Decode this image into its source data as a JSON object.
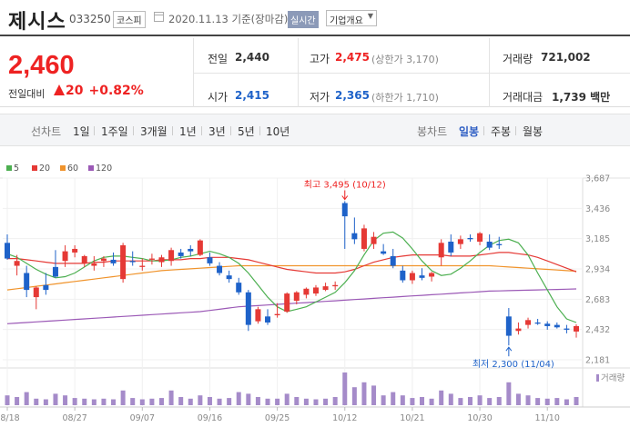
{
  "header": {
    "name": "제시스",
    "code": "033250",
    "market": "코스피",
    "date": "2020.11.13 기준(장마감)",
    "realtime": "실시간",
    "company_info": "기업개요"
  },
  "summary": {
    "price": "2,460",
    "change_label": "전일대비",
    "change": "20",
    "change_pct": "+0.82%",
    "prev_close_label": "전일",
    "prev_close": "2,440",
    "high_label": "고가",
    "high": "2,475",
    "upper_limit": "(상한가 3,170)",
    "volume_label": "거래량",
    "volume": "721,002",
    "open_label": "시가",
    "open": "2,415",
    "low_label": "저가",
    "low": "2,365",
    "lower_limit": "(하한가 1,710)",
    "amount_label": "거래대금",
    "amount": "1,739 백만"
  },
  "toolbar": {
    "line_label": "선차트",
    "periods": [
      "1일",
      "1주일",
      "3개월",
      "1년",
      "3년",
      "5년",
      "10년"
    ],
    "candle_label": "봉차트",
    "candle_types": [
      "일봉",
      "주봉",
      "월봉"
    ]
  },
  "legend": [
    {
      "label": "5",
      "color": "#4caf50"
    },
    {
      "label": "20",
      "color": "#e53935"
    },
    {
      "label": "60",
      "color": "#f0932b"
    },
    {
      "label": "120",
      "color": "#9b59b6"
    }
  ],
  "colors": {
    "up": "#e53935",
    "down": "#1e62c9",
    "volume": "#a58bc9"
  },
  "chart_data": {
    "type": "candlestick",
    "y_ticks": [
      2181,
      2432,
      2683,
      2934,
      3185,
      3436,
      3687
    ],
    "x_tick_labels": [
      "08/18",
      "08/27",
      "09/07",
      "09/16",
      "09/25",
      "10/12",
      "10/21",
      "10/30",
      "11/10"
    ],
    "x_tick_index": [
      0,
      7,
      14,
      21,
      28,
      35,
      42,
      49,
      56
    ],
    "max_annotation": "최고 3,495 (10/12)",
    "min_annotation": "최저 2,300 (11/04)",
    "volume_label": "거래량",
    "candles": [
      {
        "o": 3150,
        "h": 3220,
        "l": 3010,
        "c": 3020
      },
      {
        "o": 2960,
        "h": 3050,
        "l": 2880,
        "c": 3000
      },
      {
        "o": 2900,
        "h": 2960,
        "l": 2700,
        "c": 2760
      },
      {
        "o": 2700,
        "h": 2790,
        "l": 2600,
        "c": 2780
      },
      {
        "o": 2800,
        "h": 2900,
        "l": 2720,
        "c": 2760
      },
      {
        "o": 2950,
        "h": 3090,
        "l": 2860,
        "c": 2870
      },
      {
        "o": 3000,
        "h": 3130,
        "l": 2950,
        "c": 3080
      },
      {
        "o": 3070,
        "h": 3130,
        "l": 3030,
        "c": 3100
      },
      {
        "o": 2980,
        "h": 3050,
        "l": 2950,
        "c": 3040
      },
      {
        "o": 2960,
        "h": 3040,
        "l": 2920,
        "c": 2980
      },
      {
        "o": 3000,
        "h": 3040,
        "l": 2950,
        "c": 3020
      },
      {
        "o": 3010,
        "h": 3070,
        "l": 2960,
        "c": 2980
      },
      {
        "o": 2850,
        "h": 3150,
        "l": 2820,
        "c": 3130
      },
      {
        "o": 3000,
        "h": 3080,
        "l": 2960,
        "c": 2990
      },
      {
        "o": 2950,
        "h": 3020,
        "l": 2920,
        "c": 2960
      },
      {
        "o": 3010,
        "h": 3060,
        "l": 2970,
        "c": 3020
      },
      {
        "o": 2990,
        "h": 3050,
        "l": 2950,
        "c": 3030
      },
      {
        "o": 3000,
        "h": 3110,
        "l": 2960,
        "c": 3090
      },
      {
        "o": 3070,
        "h": 3100,
        "l": 3020,
        "c": 3040
      },
      {
        "o": 3100,
        "h": 3130,
        "l": 3040,
        "c": 3080
      },
      {
        "o": 3050,
        "h": 3180,
        "l": 3040,
        "c": 3170
      },
      {
        "o": 3030,
        "h": 3070,
        "l": 2960,
        "c": 2980
      },
      {
        "o": 2960,
        "h": 2990,
        "l": 2880,
        "c": 2900
      },
      {
        "o": 2880,
        "h": 2920,
        "l": 2820,
        "c": 2850
      },
      {
        "o": 2820,
        "h": 2860,
        "l": 2720,
        "c": 2740
      },
      {
        "o": 2740,
        "h": 2760,
        "l": 2420,
        "c": 2470
      },
      {
        "o": 2500,
        "h": 2620,
        "l": 2480,
        "c": 2600
      },
      {
        "o": 2540,
        "h": 2600,
        "l": 2470,
        "c": 2490
      },
      {
        "o": 2550,
        "h": 2650,
        "l": 2530,
        "c": 2560
      },
      {
        "o": 2580,
        "h": 2740,
        "l": 2570,
        "c": 2730
      },
      {
        "o": 2670,
        "h": 2750,
        "l": 2640,
        "c": 2740
      },
      {
        "o": 2720,
        "h": 2780,
        "l": 2690,
        "c": 2770
      },
      {
        "o": 2730,
        "h": 2800,
        "l": 2710,
        "c": 2780
      },
      {
        "o": 2760,
        "h": 2820,
        "l": 2750,
        "c": 2790
      },
      {
        "o": 2790,
        "h": 2830,
        "l": 2760,
        "c": 2800
      },
      {
        "o": 3480,
        "h": 3495,
        "l": 3100,
        "c": 3370
      },
      {
        "o": 3230,
        "h": 3360,
        "l": 3140,
        "c": 3180
      },
      {
        "o": 3100,
        "h": 3300,
        "l": 3080,
        "c": 3270
      },
      {
        "o": 3140,
        "h": 3240,
        "l": 3100,
        "c": 3200
      },
      {
        "o": 3080,
        "h": 3140,
        "l": 3050,
        "c": 3060
      },
      {
        "o": 3040,
        "h": 3100,
        "l": 2940,
        "c": 2960
      },
      {
        "o": 2920,
        "h": 2960,
        "l": 2820,
        "c": 2840
      },
      {
        "o": 2840,
        "h": 2920,
        "l": 2810,
        "c": 2900
      },
      {
        "o": 2880,
        "h": 2940,
        "l": 2840,
        "c": 2860
      },
      {
        "o": 2870,
        "h": 2910,
        "l": 2830,
        "c": 2900
      },
      {
        "o": 3030,
        "h": 3180,
        "l": 2960,
        "c": 3150
      },
      {
        "o": 3160,
        "h": 3220,
        "l": 3040,
        "c": 3070
      },
      {
        "o": 3140,
        "h": 3210,
        "l": 3100,
        "c": 3180
      },
      {
        "o": 3190,
        "h": 3220,
        "l": 3160,
        "c": 3180
      },
      {
        "o": 3160,
        "h": 3240,
        "l": 3130,
        "c": 3230
      },
      {
        "o": 3160,
        "h": 3220,
        "l": 3090,
        "c": 3110
      },
      {
        "o": 3140,
        "h": 3200,
        "l": 3100,
        "c": 3130
      },
      {
        "o": 2540,
        "h": 2610,
        "l": 2300,
        "c": 2380
      },
      {
        "o": 2420,
        "h": 2490,
        "l": 2390,
        "c": 2440
      },
      {
        "o": 2470,
        "h": 2530,
        "l": 2440,
        "c": 2510
      },
      {
        "o": 2490,
        "h": 2520,
        "l": 2470,
        "c": 2480
      },
      {
        "o": 2480,
        "h": 2500,
        "l": 2430,
        "c": 2460
      },
      {
        "o": 2470,
        "h": 2490,
        "l": 2440,
        "c": 2450
      },
      {
        "o": 2440,
        "h": 2470,
        "l": 2400,
        "c": 2430
      },
      {
        "o": 2415,
        "h": 2475,
        "l": 2365,
        "c": 2460
      }
    ],
    "volume": [
      30,
      25,
      40,
      20,
      18,
      35,
      30,
      22,
      20,
      18,
      20,
      18,
      45,
      22,
      18,
      20,
      22,
      45,
      25,
      20,
      30,
      25,
      20,
      22,
      40,
      35,
      25,
      20,
      20,
      35,
      25,
      20,
      18,
      20,
      25,
      100,
      55,
      70,
      60,
      30,
      40,
      30,
      22,
      25,
      20,
      45,
      35,
      22,
      25,
      30,
      22,
      25,
      70,
      35,
      30,
      22,
      20,
      22,
      18,
      25
    ],
    "ma5": [
      3060,
      3030,
      2980,
      2930,
      2890,
      2860,
      2870,
      2900,
      2950,
      3000,
      3030,
      3040,
      3040,
      3030,
      3020,
      3000,
      3000,
      3010,
      3030,
      3040,
      3060,
      3080,
      3060,
      3030,
      2980,
      2900,
      2800,
      2700,
      2620,
      2580,
      2600,
      2620,
      2660,
      2700,
      2740,
      2820,
      2920,
      3050,
      3170,
      3230,
      3240,
      3190,
      3100,
      3000,
      2920,
      2880,
      2890,
      2940,
      3000,
      3070,
      3130,
      3170,
      3180,
      3150,
      3050,
      2900,
      2760,
      2620,
      2520,
      2490
    ],
    "ma20": [
      3020,
      3020,
      3010,
      3000,
      2990,
      2980,
      2980,
      2980,
      2980,
      2990,
      2990,
      3000,
      3000,
      3000,
      3000,
      3000,
      3010,
      3010,
      3010,
      3020,
      3020,
      3030,
      3030,
      3030,
      3020,
      3010,
      2990,
      2970,
      2950,
      2930,
      2920,
      2910,
      2900,
      2900,
      2900,
      2910,
      2930,
      2960,
      2990,
      3010,
      3030,
      3040,
      3050,
      3050,
      3050,
      3050,
      3040,
      3040,
      3040,
      3050,
      3060,
      3070,
      3070,
      3060,
      3050,
      3030,
      3000,
      2970,
      2940,
      2910
    ],
    "ma60": [
      2760,
      2770,
      2780,
      2790,
      2800,
      2810,
      2820,
      2830,
      2840,
      2850,
      2860,
      2870,
      2880,
      2890,
      2900,
      2910,
      2920,
      2925,
      2930,
      2935,
      2940,
      2945,
      2950,
      2955,
      2960,
      2960,
      2960,
      2960,
      2960,
      2960,
      2960,
      2960,
      2960,
      2960,
      2960,
      2960,
      2960,
      2960,
      2960,
      2960,
      2960,
      2960,
      2960,
      2960,
      2960,
      2960,
      2960,
      2960,
      2960,
      2960,
      2960,
      2955,
      2950,
      2945,
      2940,
      2935,
      2930,
      2925,
      2920,
      2915
    ],
    "ma120": [
      2480,
      2485,
      2490,
      2495,
      2500,
      2505,
      2510,
      2515,
      2520,
      2525,
      2530,
      2535,
      2540,
      2545,
      2550,
      2555,
      2560,
      2565,
      2570,
      2575,
      2580,
      2590,
      2600,
      2610,
      2620,
      2625,
      2630,
      2635,
      2640,
      2645,
      2650,
      2655,
      2660,
      2665,
      2670,
      2675,
      2680,
      2685,
      2690,
      2695,
      2700,
      2705,
      2710,
      2715,
      2720,
      2725,
      2730,
      2735,
      2740,
      2745,
      2750,
      2752,
      2754,
      2756,
      2758,
      2760,
      2762,
      2764,
      2766,
      2768
    ]
  }
}
